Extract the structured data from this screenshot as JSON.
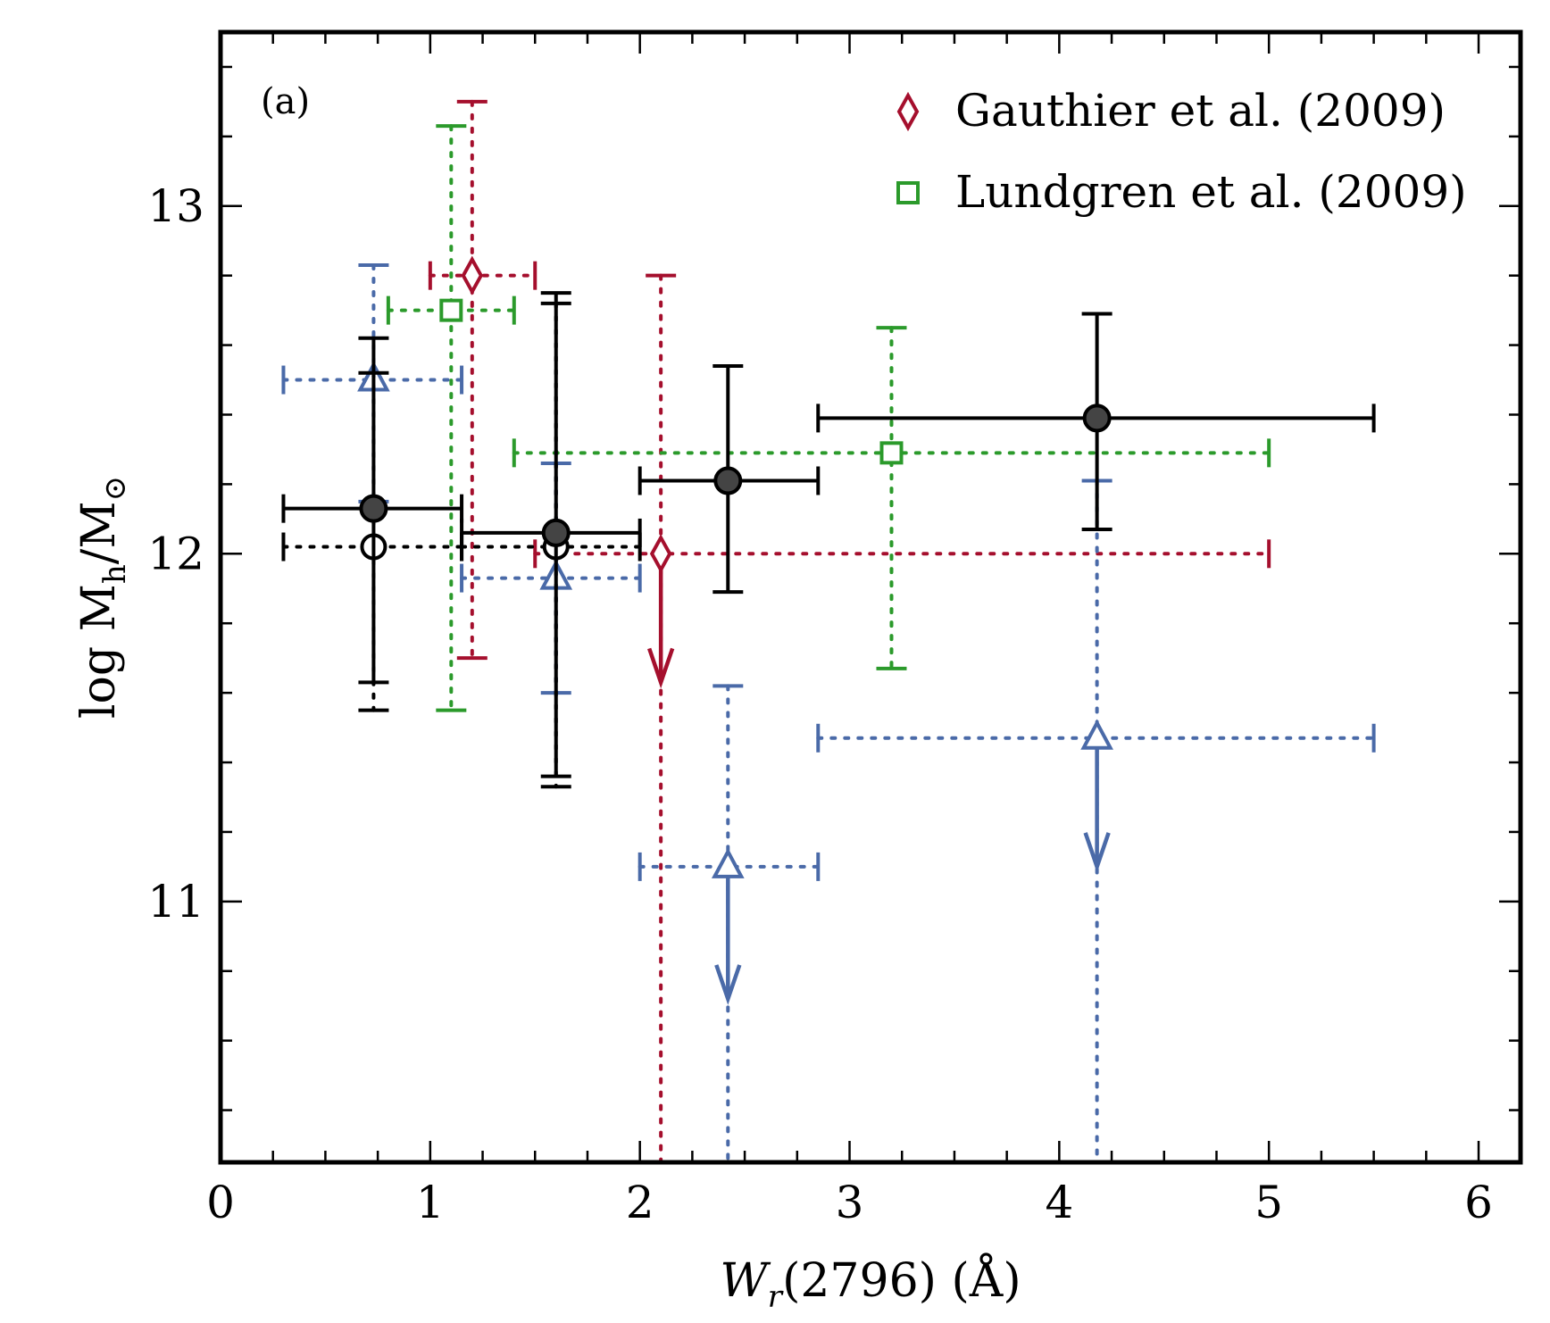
{
  "chart_data": {
    "type": "scatter",
    "panel_label": "(a)",
    "xlabel_parts": {
      "main": "W",
      "sub": "r",
      "rest": "(2796) (Å)"
    },
    "ylabel_parts": {
      "pre": "log M",
      "sub": "h",
      "rest": "/M",
      "sub2": "⊙"
    },
    "xlim": [
      0,
      6.2
    ],
    "ylim": [
      10.25,
      13.5
    ],
    "x_ticks": [
      0,
      1,
      2,
      3,
      4,
      5,
      6
    ],
    "x_tick_labels": [
      "0",
      "1",
      "2",
      "3",
      "4",
      "5",
      "6"
    ],
    "y_ticks": [
      11,
      12,
      13
    ],
    "y_tick_labels": [
      "11",
      "12",
      "13"
    ],
    "grid": false,
    "legend_position": "top-right",
    "legend": [
      {
        "label": "Gauthier et al. (2009)",
        "marker": "diamond",
        "color": "#a50f2d"
      },
      {
        "label": "Lundgren et al. (2009)",
        "marker": "square",
        "color": "#2b9a2b"
      }
    ],
    "series": [
      {
        "key": "black_filled",
        "marker": "circle-filled",
        "color": "#000000",
        "fill": "#444444",
        "line": "solid",
        "points": [
          {
            "x": 0.73,
            "y": 12.13,
            "xlo": 0.3,
            "xhi": 1.15,
            "ylo": 11.63,
            "yhi": 12.62
          },
          {
            "x": 1.6,
            "y": 12.06,
            "xlo": 1.15,
            "xhi": 2.0,
            "ylo": 11.36,
            "yhi": 12.75
          },
          {
            "x": 2.42,
            "y": 12.21,
            "xlo": 2.0,
            "xhi": 2.85,
            "ylo": 11.89,
            "yhi": 12.54
          },
          {
            "x": 4.18,
            "y": 12.39,
            "xlo": 2.85,
            "xhi": 5.5,
            "ylo": 12.07,
            "yhi": 12.69
          }
        ]
      },
      {
        "key": "black_open",
        "marker": "circle-open",
        "color": "#000000",
        "line": "dotted",
        "points": [
          {
            "x": 0.73,
            "y": 12.02,
            "xlo": 0.3,
            "xhi": 1.15,
            "ylo": 11.55,
            "yhi": 12.52
          },
          {
            "x": 1.6,
            "y": 12.02,
            "xlo": 1.15,
            "xhi": 2.0,
            "ylo": 11.33,
            "yhi": 12.72
          }
        ]
      },
      {
        "key": "blue_triangle",
        "marker": "triangle-open",
        "color": "#4a6aa8",
        "line": "dotted",
        "points": [
          {
            "x": 0.73,
            "y": 12.5,
            "xlo": 0.3,
            "xhi": 1.15,
            "ylo": 12.15,
            "yhi": 12.83
          },
          {
            "x": 1.6,
            "y": 11.93,
            "xlo": 1.15,
            "xhi": 2.0,
            "ylo": 11.6,
            "yhi": 12.26
          },
          {
            "x": 2.42,
            "y": 11.1,
            "xlo": 2.0,
            "xhi": 2.85,
            "ylo": 10.25,
            "yhi": 11.62,
            "upper_limit": true,
            "arrow_to": 10.72
          },
          {
            "x": 4.18,
            "y": 11.47,
            "xlo": 2.85,
            "xhi": 5.5,
            "ylo": 10.25,
            "yhi": 12.21,
            "upper_limit": true,
            "arrow_to": 11.1
          }
        ]
      },
      {
        "key": "gauthier",
        "name": "Gauthier et al. (2009)",
        "marker": "diamond",
        "color": "#a50f2d",
        "line": "dotted",
        "points": [
          {
            "x": 1.2,
            "y": 12.8,
            "xlo": 1.0,
            "xhi": 1.5,
            "ylo": 11.7,
            "yhi": 13.3
          },
          {
            "x": 2.1,
            "y": 12.0,
            "xlo": 1.5,
            "xhi": 5.0,
            "ylo": 10.25,
            "yhi": 12.8,
            "upper_limit": true,
            "arrow_to": 11.63
          }
        ]
      },
      {
        "key": "lundgren",
        "name": "Lundgren et al. (2009)",
        "marker": "square",
        "color": "#2b9a2b",
        "line": "dotted",
        "points": [
          {
            "x": 1.1,
            "y": 12.7,
            "xlo": 0.8,
            "xhi": 1.4,
            "ylo": 11.55,
            "yhi": 13.23
          },
          {
            "x": 3.2,
            "y": 12.29,
            "xlo": 1.4,
            "xhi": 5.0,
            "ylo": 11.67,
            "yhi": 12.65
          }
        ]
      }
    ]
  }
}
